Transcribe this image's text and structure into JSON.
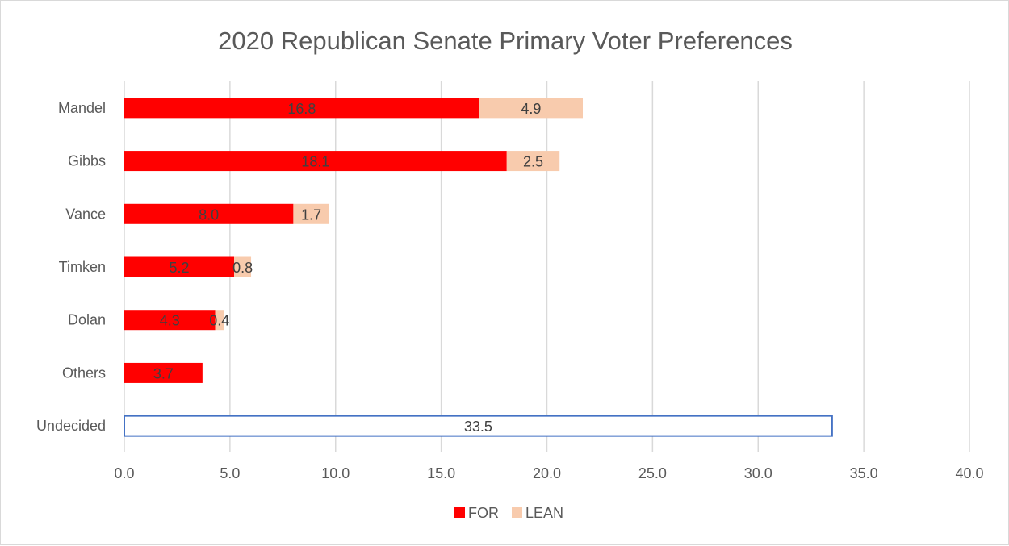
{
  "chart_data": {
    "type": "bar",
    "orientation": "horizontal",
    "stacked": true,
    "title": "2020 Republican Senate Primary Voter Preferences",
    "categories": [
      "Mandel",
      "Gibbs",
      "Vance",
      "Timken",
      "Dolan",
      "Others",
      "Undecided"
    ],
    "series": [
      {
        "name": "FOR",
        "color": "#ff0000",
        "values": [
          16.8,
          18.1,
          8.0,
          5.2,
          4.3,
          3.7,
          null
        ]
      },
      {
        "name": "LEAN",
        "color": "#f8cbad",
        "values": [
          4.9,
          2.5,
          1.7,
          0.8,
          0.4,
          null,
          null
        ]
      },
      {
        "name": "",
        "color": "#ffffff",
        "outline": "#4472c4",
        "in_legend": false,
        "values": [
          null,
          null,
          null,
          null,
          null,
          null,
          33.5
        ]
      }
    ],
    "xlim": [
      0,
      40
    ],
    "x_ticks": [
      "0.0",
      "5.0",
      "10.0",
      "15.0",
      "20.0",
      "25.0",
      "30.0",
      "35.0",
      "40.0"
    ],
    "grid": true,
    "legend": "bottom",
    "data_labels": true,
    "grid_color": "#d9d9d9"
  }
}
